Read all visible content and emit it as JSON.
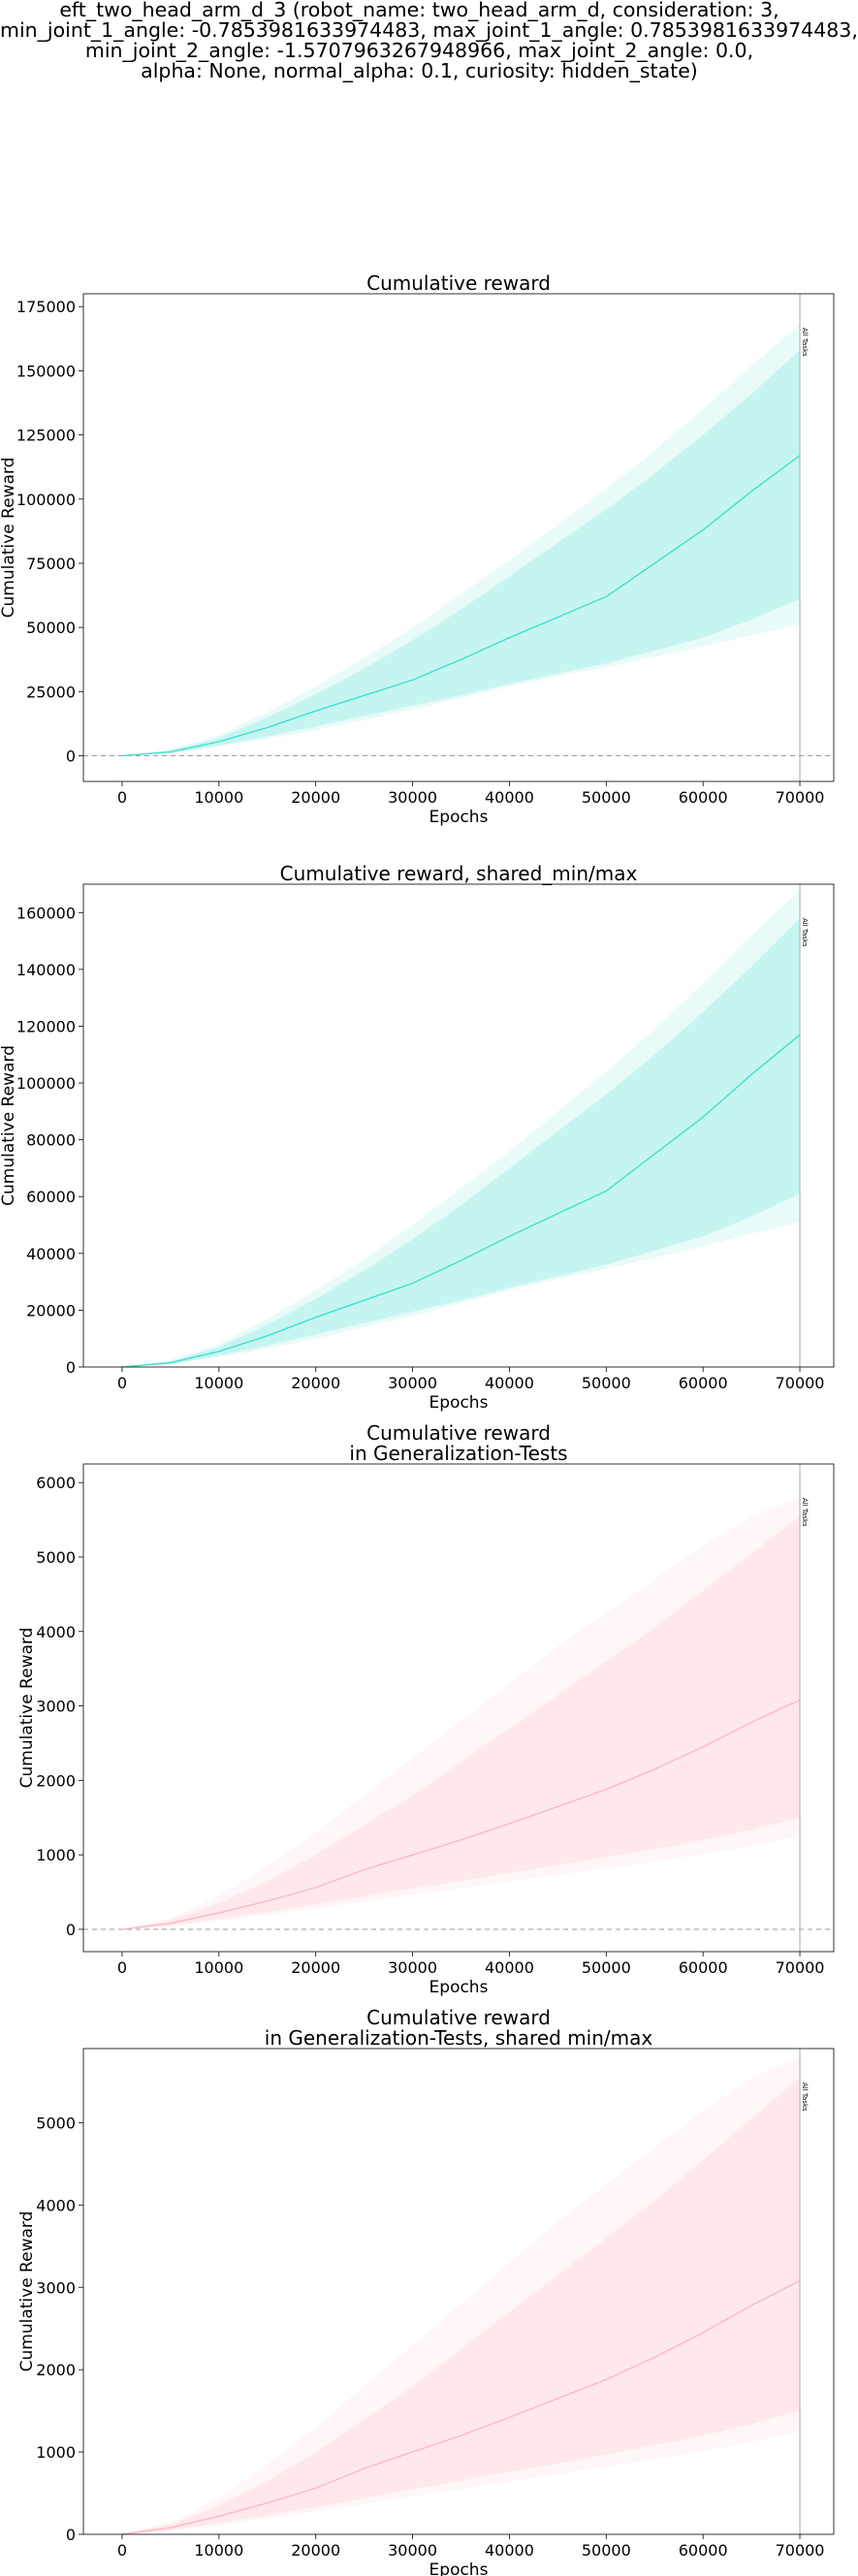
{
  "figure": {
    "suptitle_lines": [
      "eft_two_head_arm_d_3 (robot_name: two_head_arm_d, consideration: 3,",
      "min_joint_1_angle: -0.7853981633974483, max_joint_1_angle: 0.7853981633974483,",
      "min_joint_2_angle: -1.5707963267948966, max_joint_2_angle: 0.0,",
      "alpha: None, normal_alpha: 0.1, curiosity: hidden_state)"
    ]
  },
  "chart_data": [
    {
      "type": "line",
      "title": "Cumulative reward",
      "xlabel": "Epochs",
      "ylabel": "Cumulative Reward",
      "xlim": [
        -4000,
        73500
      ],
      "ylim": [
        -10000,
        180000
      ],
      "xticks": [
        0,
        10000,
        20000,
        30000,
        40000,
        50000,
        60000,
        70000
      ],
      "yticks": [
        0,
        25000,
        50000,
        75000,
        100000,
        125000,
        150000,
        175000
      ],
      "color": "#40e0d0",
      "zero_line": true,
      "vline": {
        "x": 70000,
        "label": "All Tasks"
      },
      "series": [
        {
          "x": [
            0,
            5000,
            10000,
            15000,
            20000,
            25000,
            30000,
            35000,
            40000,
            45000,
            50000,
            55000,
            60000,
            65000,
            70000
          ],
          "mean": [
            0,
            1500,
            5500,
            11000,
            17500,
            23500,
            29500,
            37500,
            46000,
            54000,
            62000,
            75000,
            88000,
            103000,
            117000
          ],
          "inner_low": [
            0,
            1000,
            4000,
            7500,
            11500,
            15500,
            19500,
            23500,
            28000,
            32000,
            36000,
            41000,
            46000,
            53000,
            61000
          ],
          "inner_high": [
            0,
            2000,
            7000,
            15000,
            24000,
            34000,
            45000,
            57000,
            70000,
            83000,
            96000,
            110000,
            125000,
            141000,
            158000
          ],
          "outer_low": [
            0,
            1000,
            3500,
            6500,
            10000,
            14000,
            18000,
            22500,
            27000,
            31000,
            34500,
            38500,
            42500,
            47000,
            51000
          ],
          "outer_high": [
            0,
            2500,
            8000,
            17000,
            27000,
            38000,
            50000,
            63000,
            76000,
            90000,
            104000,
            119000,
            135000,
            152000,
            168000
          ]
        }
      ]
    },
    {
      "type": "line",
      "title": "Cumulative reward, shared_min/max",
      "xlabel": "Epochs",
      "ylabel": "Cumulative Reward",
      "xlim": [
        -4000,
        73500
      ],
      "ylim": [
        0,
        170000
      ],
      "xticks": [
        0,
        10000,
        20000,
        30000,
        40000,
        50000,
        60000,
        70000
      ],
      "yticks": [
        0,
        20000,
        40000,
        60000,
        80000,
        100000,
        120000,
        140000,
        160000
      ],
      "color": "#40e0d0",
      "zero_line": false,
      "vline": {
        "x": 70000,
        "label": "All Tasks"
      },
      "series": [
        {
          "x": [
            0,
            5000,
            10000,
            15000,
            20000,
            25000,
            30000,
            35000,
            40000,
            45000,
            50000,
            55000,
            60000,
            65000,
            70000
          ],
          "mean": [
            0,
            1500,
            5500,
            11000,
            17500,
            23500,
            29500,
            37500,
            46000,
            54000,
            62000,
            75000,
            88000,
            103000,
            117000
          ],
          "inner_low": [
            0,
            1000,
            4000,
            7500,
            11500,
            15500,
            19500,
            23500,
            28000,
            32000,
            36000,
            41000,
            46000,
            53000,
            61000
          ],
          "inner_high": [
            0,
            2000,
            7000,
            15000,
            24000,
            34000,
            45000,
            57000,
            70000,
            83000,
            96000,
            110000,
            125000,
            141000,
            158000
          ],
          "outer_low": [
            0,
            1000,
            3500,
            6500,
            10000,
            14000,
            18000,
            22500,
            27000,
            31000,
            34500,
            38500,
            42500,
            47000,
            51000
          ],
          "outer_high": [
            0,
            2500,
            8000,
            17000,
            27000,
            38000,
            50000,
            63000,
            76000,
            90000,
            104000,
            119000,
            135000,
            152000,
            168000
          ]
        }
      ]
    },
    {
      "type": "line",
      "title": "Cumulative reward\nin Generalization-Tests",
      "xlabel": "Epochs",
      "ylabel": "Cumulative Reward",
      "xlim": [
        -4000,
        73500
      ],
      "ylim": [
        -300,
        6250
      ],
      "xticks": [
        0,
        10000,
        20000,
        30000,
        40000,
        50000,
        60000,
        70000
      ],
      "yticks": [
        0,
        1000,
        2000,
        3000,
        4000,
        5000,
        6000
      ],
      "color": "#ffb6c1",
      "zero_line": true,
      "vline": {
        "x": 70000,
        "label": "All Tasks"
      },
      "series": [
        {
          "x": [
            0,
            5000,
            10000,
            15000,
            20000,
            25000,
            30000,
            35000,
            40000,
            45000,
            50000,
            55000,
            60000,
            65000,
            70000
          ],
          "mean": [
            0,
            80,
            220,
            380,
            560,
            800,
            1000,
            1200,
            1420,
            1650,
            1880,
            2150,
            2450,
            2780,
            3080
          ],
          "inner_low": [
            0,
            50,
            140,
            230,
            330,
            440,
            550,
            650,
            760,
            860,
            970,
            1080,
            1200,
            1340,
            1500
          ],
          "inner_high": [
            0,
            120,
            350,
            650,
            1000,
            1400,
            1800,
            2250,
            2700,
            3150,
            3600,
            4050,
            4550,
            5050,
            5550
          ],
          "outer_low": [
            0,
            40,
            110,
            190,
            280,
            370,
            460,
            550,
            640,
            730,
            820,
            910,
            1010,
            1120,
            1250
          ],
          "outer_high": [
            0,
            150,
            450,
            850,
            1300,
            1800,
            2300,
            2800,
            3300,
            3800,
            4250,
            4700,
            5150,
            5550,
            5800
          ]
        }
      ]
    },
    {
      "type": "line",
      "title": "Cumulative reward\nin Generalization-Tests, shared min/max",
      "xlabel": "Epochs",
      "ylabel": "Cumulative Reward",
      "xlim": [
        -4000,
        73500
      ],
      "ylim": [
        0,
        5900
      ],
      "xticks": [
        0,
        10000,
        20000,
        30000,
        40000,
        50000,
        60000,
        70000
      ],
      "yticks": [
        0,
        1000,
        2000,
        3000,
        4000,
        5000
      ],
      "color": "#ffb6c1",
      "zero_line": false,
      "vline": {
        "x": 70000,
        "label": "All Tasks"
      },
      "series": [
        {
          "x": [
            0,
            5000,
            10000,
            15000,
            20000,
            25000,
            30000,
            35000,
            40000,
            45000,
            50000,
            55000,
            60000,
            65000,
            70000
          ],
          "mean": [
            0,
            80,
            220,
            380,
            560,
            800,
            1000,
            1200,
            1420,
            1650,
            1880,
            2150,
            2450,
            2780,
            3080
          ],
          "inner_low": [
            0,
            50,
            140,
            230,
            330,
            440,
            550,
            650,
            760,
            860,
            970,
            1080,
            1200,
            1340,
            1500
          ],
          "inner_high": [
            0,
            120,
            350,
            650,
            1000,
            1400,
            1800,
            2250,
            2700,
            3150,
            3600,
            4050,
            4550,
            5050,
            5550
          ],
          "outer_low": [
            0,
            40,
            110,
            190,
            280,
            370,
            460,
            550,
            640,
            730,
            820,
            910,
            1010,
            1120,
            1250
          ],
          "outer_high": [
            0,
            150,
            450,
            850,
            1300,
            1800,
            2300,
            2800,
            3300,
            3800,
            4250,
            4700,
            5150,
            5550,
            5800
          ]
        }
      ]
    }
  ]
}
